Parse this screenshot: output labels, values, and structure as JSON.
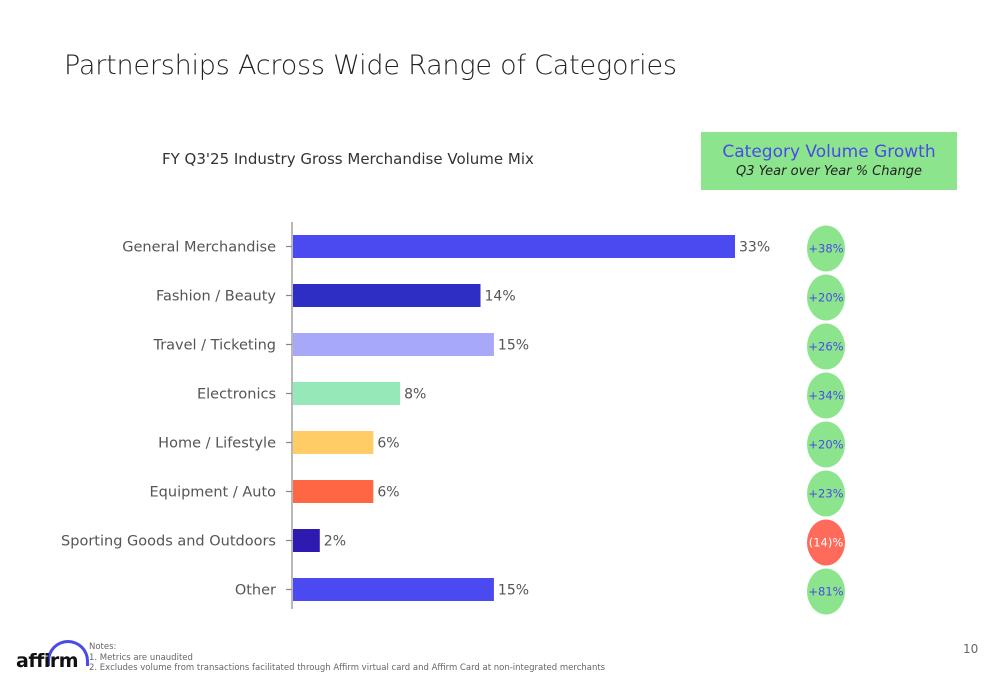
{
  "page": {
    "title": "Partnerships Across Wide Range of Categories",
    "page_number": "10"
  },
  "growth_box": {
    "title": "Category Volume Growth",
    "subtitle": "Q3 Year over Year % Change"
  },
  "chart_data": {
    "type": "bar",
    "orientation": "horizontal",
    "title": "FY Q3'25 Industry Gross Merchandise Volume Mix",
    "categories": [
      "General Merchandise",
      "Fashion / Beauty",
      "Travel / Ticketing",
      "Electronics",
      "Home / Lifestyle",
      "Equipment / Auto",
      "Sporting Goods and Outdoors",
      "Other"
    ],
    "values": [
      33,
      14,
      15,
      8,
      6,
      6,
      2,
      15
    ],
    "value_labels": [
      "33%",
      "14%",
      "15%",
      "8%",
      "6%",
      "6%",
      "2%",
      "15%"
    ],
    "bar_colors": [
      "#4a4af0",
      "#2e2ec4",
      "#a8a8f8",
      "#96e8b8",
      "#ffcc66",
      "#ff6644",
      "#2e1ab0",
      "#4a4af0"
    ],
    "growth": [
      "+38%",
      "+20%",
      "+26%",
      "+34%",
      "+20%",
      "+23%",
      "(14)%",
      "+81%"
    ],
    "growth_colors": [
      "#8ce58c",
      "#8ce58c",
      "#8ce58c",
      "#8ce58c",
      "#8ce58c",
      "#8ce58c",
      "#ff6b5a",
      "#8ce58c"
    ],
    "xlim": [
      0,
      33
    ],
    "grid": false,
    "legend": "none"
  },
  "footer": {
    "logo_text": "affirm",
    "notes": [
      "Notes:",
      "1. Metrics are unaudited",
      "2. Excludes volume from transactions facilitated through Affirm virtual card and Affirm Card at non-integrated merchants"
    ]
  },
  "colors": {
    "accent": "#4a4ae8",
    "growth_positive": "#8ce58c",
    "growth_negative": "#ff6b5a"
  }
}
